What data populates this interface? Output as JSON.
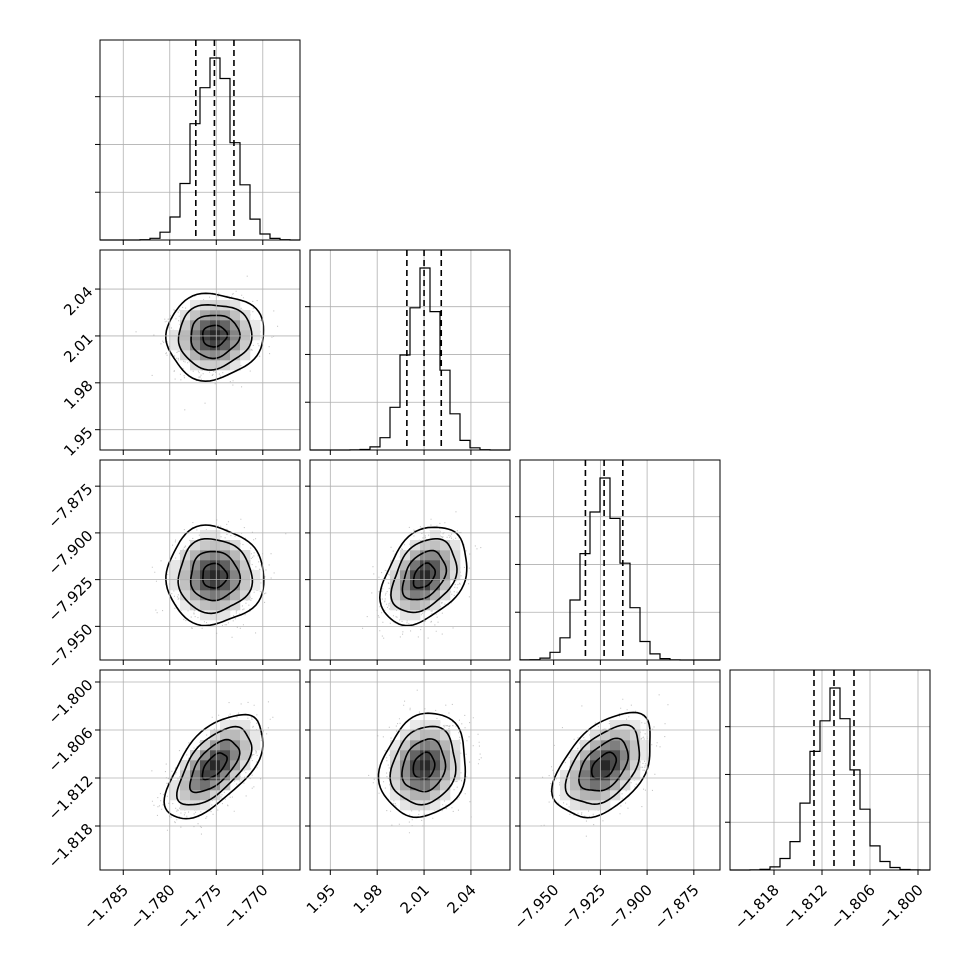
{
  "chart_data": {
    "type": "corner",
    "title": "",
    "parameters": [
      {
        "index": 0,
        "median": -1.7752,
        "q16": -1.7772,
        "q84": -1.7731,
        "sigma": 0.0021,
        "range": [
          -1.7875,
          -1.766
        ],
        "ticks": [
          -1.785,
          -1.78,
          -1.775,
          -1.77
        ],
        "tick_labels": [
          "−1.785",
          "−1.780",
          "−1.775",
          "−1.770"
        ]
      },
      {
        "index": 1,
        "median": 2.01,
        "q16": 1.999,
        "q84": 2.021,
        "sigma": 0.011,
        "range": [
          1.937,
          2.065
        ],
        "ticks": [
          1.95,
          1.98,
          2.01,
          2.04
        ],
        "tick_labels": [
          "1.95",
          "1.98",
          "2.01",
          "2.04"
        ]
      },
      {
        "index": 2,
        "median": -7.923,
        "q16": -7.933,
        "q84": -7.913,
        "sigma": 0.0105,
        "range": [
          -7.968,
          -7.861
        ],
        "ticks": [
          -7.95,
          -7.925,
          -7.9,
          -7.875
        ],
        "tick_labels": [
          "−7.950",
          "−7.925",
          "−7.900",
          "−7.875"
        ]
      },
      {
        "index": 3,
        "median": -1.8105,
        "q16": -1.813,
        "q84": -1.808,
        "sigma": 0.0026,
        "range": [
          -1.8235,
          -1.7985
        ],
        "ticks": [
          -1.818,
          -1.812,
          -1.806,
          -1.8
        ],
        "tick_labels": [
          "−1.818",
          "−1.812",
          "−1.806",
          "−1.800"
        ]
      }
    ],
    "correlations": [
      {
        "pair": [
          1,
          0
        ],
        "rho": 0.05
      },
      {
        "pair": [
          2,
          0
        ],
        "rho": 0.0
      },
      {
        "pair": [
          2,
          1
        ],
        "rho": 0.35
      },
      {
        "pair": [
          3,
          0
        ],
        "rho": 0.6
      },
      {
        "pair": [
          3,
          1
        ],
        "rho": 0.15
      },
      {
        "pair": [
          3,
          2
        ],
        "rho": 0.45
      }
    ],
    "histogram_bins": 20,
    "contour_levels_sigma": [
      0.5,
      1.0,
      1.5,
      2.0
    ],
    "grid": true,
    "legend": "none"
  }
}
